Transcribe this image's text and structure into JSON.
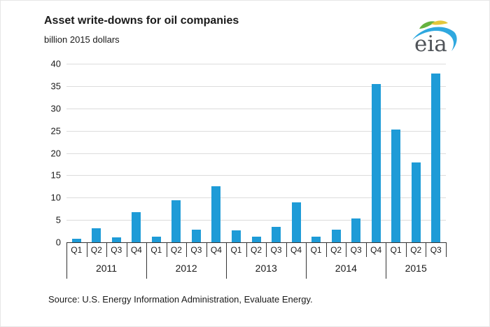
{
  "header": {
    "title": "Asset write-downs for oil companies",
    "subtitle": "billion 2015 dollars",
    "logo_text": "eia"
  },
  "footer": {
    "source": "Source:  U.S. Energy Information Administration, Evaluate Energy."
  },
  "colors": {
    "bar": "#1e9bd7",
    "gridline": "#dcdcdc",
    "axis": "#333333",
    "text": "#1a1a1a",
    "logo_text": "#4f5358",
    "logo_blue": "#2fa8df",
    "logo_green": "#66b23f",
    "logo_yellow": "#e3c73c"
  },
  "chart_data": {
    "type": "bar",
    "title": "Asset write-downs for oil companies",
    "subtitle": "billion 2015 dollars",
    "xlabel": "",
    "ylabel": "billion 2015 dollars",
    "ylim": [
      0,
      40
    ],
    "ytick_interval": 5,
    "yticks": [
      0,
      5,
      10,
      15,
      20,
      25,
      30,
      35,
      40
    ],
    "grid": true,
    "legend": "none",
    "groups": [
      {
        "year": "2011",
        "quarters": [
          "Q1",
          "Q2",
          "Q3",
          "Q4"
        ],
        "values": [
          0.8,
          3.2,
          1.1,
          6.7
        ]
      },
      {
        "year": "2012",
        "quarters": [
          "Q1",
          "Q2",
          "Q3",
          "Q4"
        ],
        "values": [
          1.2,
          9.4,
          2.8,
          12.5
        ]
      },
      {
        "year": "2013",
        "quarters": [
          "Q1",
          "Q2",
          "Q3",
          "Q4"
        ],
        "values": [
          2.6,
          1.3,
          3.5,
          9.0
        ]
      },
      {
        "year": "2014",
        "quarters": [
          "Q1",
          "Q2",
          "Q3",
          "Q4"
        ],
        "values": [
          1.2,
          2.9,
          5.3,
          35.5
        ]
      },
      {
        "year": "2015",
        "quarters": [
          "Q1",
          "Q2",
          "Q3"
        ],
        "values": [
          25.2,
          17.9,
          37.8
        ]
      }
    ]
  }
}
